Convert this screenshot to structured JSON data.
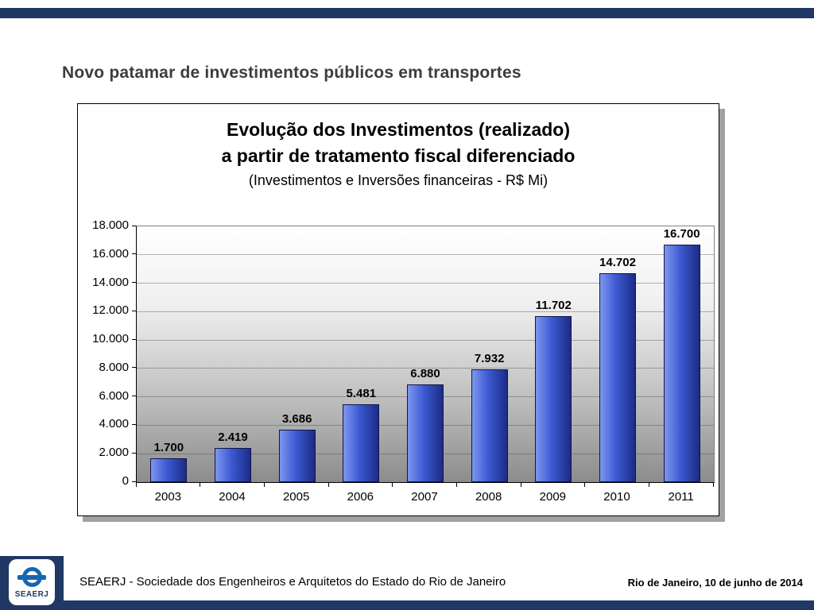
{
  "slide": {
    "title": "Novo patamar de investimentos públicos em transportes"
  },
  "chart": {
    "title_line1": "Evolução dos Investimentos (realizado)",
    "title_line2": "a partir de tratamento fiscal diferenciado",
    "subtitle": "(Investimentos e Inversões financeiras - R$ Mi)"
  },
  "chart_data": {
    "type": "bar",
    "title": "Evolução dos Investimentos (realizado) a partir de tratamento fiscal diferenciado",
    "subtitle": "(Investimentos e Inversões financeiras - R$ Mi)",
    "categories": [
      "2003",
      "2004",
      "2005",
      "2006",
      "2007",
      "2008",
      "2009",
      "2010",
      "2011"
    ],
    "values": [
      1700,
      2419,
      3686,
      5481,
      6880,
      7932,
      11702,
      14702,
      16700
    ],
    "value_labels": [
      "1.700",
      "2.419",
      "3.686",
      "5.481",
      "6.880",
      "7.932",
      "11.702",
      "14.702",
      "16.700"
    ],
    "xlabel": "",
    "ylabel": "",
    "ylim": [
      0,
      18000
    ],
    "ytick_interval": 2000,
    "ytick_labels": [
      "0",
      "2.000",
      "4.000",
      "6.000",
      "8.000",
      "10.000",
      "12.000",
      "14.000",
      "16.000",
      "18.000"
    ],
    "grid": true,
    "legend": "none",
    "bar_colors": [
      "#7e97ee",
      "#3d5ad2",
      "#1c2b86"
    ]
  },
  "footer": {
    "logo_text": "SEAERJ",
    "org_text": "SEAERJ - Sociedade dos Engenheiros e Arquitetos do Estado do Rio de Janeiro",
    "date_text": "Rio de Janeiro, 10 de junho de 2014"
  },
  "colors": {
    "band": "#1f3864",
    "logo_blue": "#1666b0",
    "title_gray": "#3d3d3d"
  }
}
